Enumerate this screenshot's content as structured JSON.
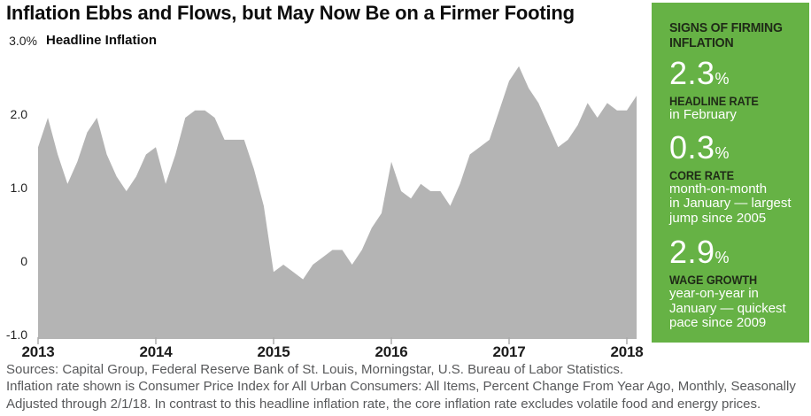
{
  "title": "Inflation Ebbs and Flows, but May Now Be on a Firmer Footing",
  "chart_data": {
    "type": "area",
    "title": "Inflation Ebbs and Flows, but May Now Be on a Firmer Footing",
    "series_label": "Headline Inflation",
    "unit": "percent",
    "frequency": "monthly",
    "x_range": [
      "2013-01",
      "2018-02"
    ],
    "x_tick_labels": [
      "2013",
      "2014",
      "2015",
      "2016",
      "2017",
      "2018"
    ],
    "y_ticks": [
      {
        "label": "3.0%",
        "value": 3.0
      },
      {
        "label": "2.0",
        "value": 2.0
      },
      {
        "label": "1.0",
        "value": 1.0
      },
      {
        "label": "0",
        "value": 0
      },
      {
        "label": "-1.0",
        "value": -1.0
      }
    ],
    "ylim": [
      -1.0,
      3.0
    ],
    "grid": false,
    "fill_color": "#b4b4b4",
    "values": [
      1.6,
      2.0,
      1.5,
      1.1,
      1.4,
      1.8,
      2.0,
      1.5,
      1.2,
      1.0,
      1.2,
      1.5,
      1.6,
      1.1,
      1.5,
      2.0,
      2.1,
      2.1,
      2.0,
      1.7,
      1.7,
      1.7,
      1.3,
      0.8,
      -0.1,
      0.0,
      -0.1,
      -0.2,
      0.0,
      0.1,
      0.2,
      0.2,
      0.0,
      0.2,
      0.5,
      0.7,
      1.4,
      1.0,
      0.9,
      1.1,
      1.0,
      1.0,
      0.8,
      1.1,
      1.5,
      1.6,
      1.7,
      2.1,
      2.5,
      2.7,
      2.4,
      2.2,
      1.9,
      1.6,
      1.7,
      1.9,
      2.2,
      2.0,
      2.2,
      2.1,
      2.1,
      2.3
    ]
  },
  "sidebar": {
    "title": "SIGNS OF FIRMING\nINFLATION",
    "accent_color": "#66b245",
    "stats": [
      {
        "value": "2.3",
        "unit": "%",
        "label": "HEADLINE RATE",
        "description": "in February"
      },
      {
        "value": "0.3",
        "unit": "%",
        "label": "CORE RATE",
        "description": "month-on-month\nin January — largest\njump since 2005"
      },
      {
        "value": "2.9",
        "unit": "%",
        "label": "WAGE GROWTH",
        "description": "year-on-year in\nJanuary — quickest\npace since 2009"
      }
    ]
  },
  "footer": {
    "lines": [
      "Sources: Capital Group, Federal Reserve Bank of St. Louis, Morningstar, U.S. Bureau of Labor Statistics.",
      "Inflation rate shown is Consumer Price Index for All Urban Consumers: All Items, Percent Change From Year Ago, Monthly, Seasonally",
      "Adjusted through 2/1/18. In contrast to this headline inflation rate, the core inflation rate excludes volatile food and energy prices."
    ]
  }
}
